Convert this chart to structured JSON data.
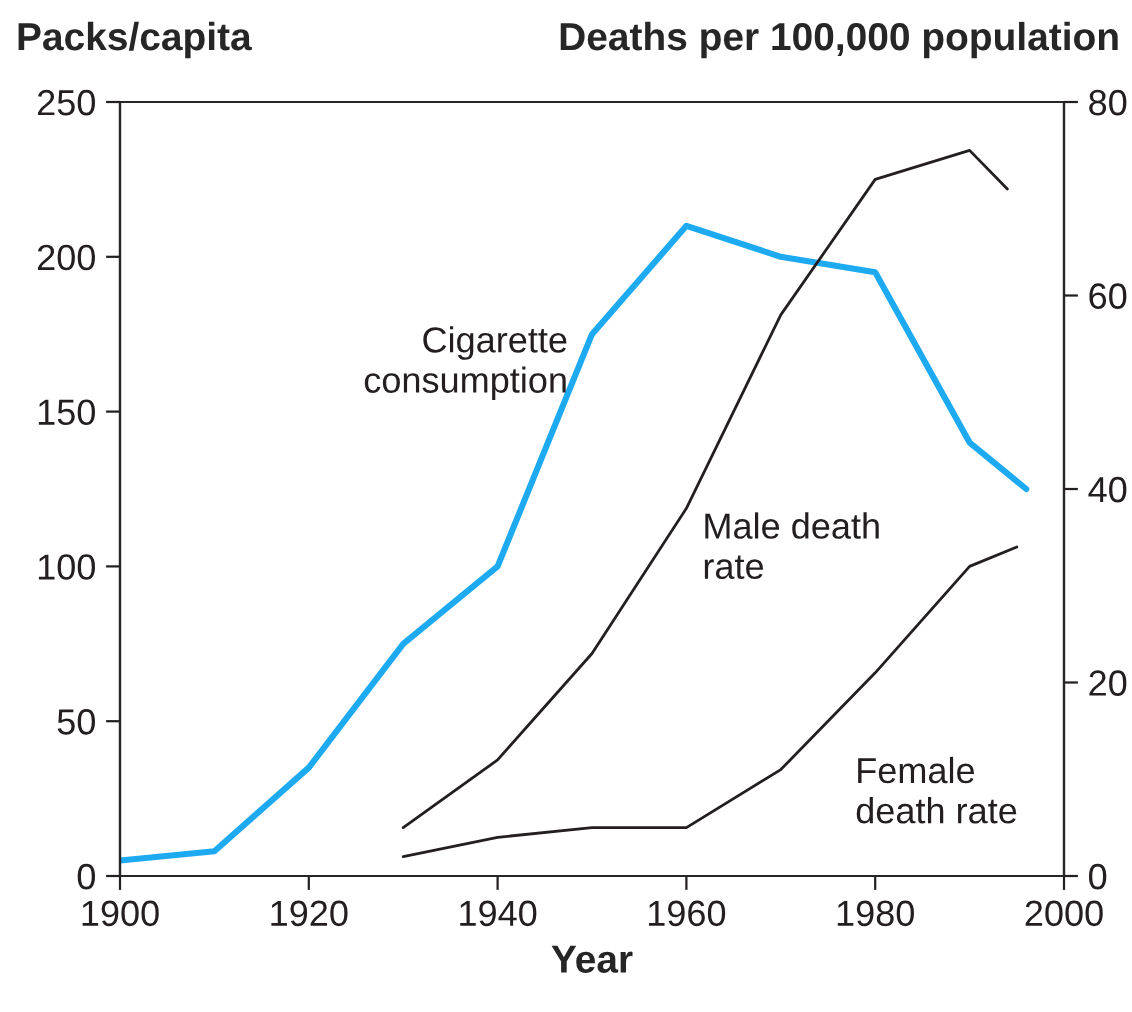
{
  "chart_data": {
    "type": "line",
    "xlabel": "Year",
    "ylabel": "Packs/capita",
    "y2label": "Deaths per 100,000 population",
    "xlim": [
      1900,
      2000
    ],
    "xticks": [
      1900,
      1920,
      1940,
      1960,
      1980,
      2000
    ],
    "ylim": [
      0,
      250
    ],
    "yticks": [
      0,
      50,
      100,
      150,
      200,
      250
    ],
    "y2lim": [
      0,
      80
    ],
    "y2ticks": [
      0,
      20,
      40,
      60,
      80
    ],
    "grid": false,
    "legend": false,
    "marker": "none",
    "line_style": "solid",
    "series": [
      {
        "name": "Cigarette consumption",
        "color": "#1eaaf1",
        "x": [
          1900,
          1910,
          1920,
          1930,
          1940,
          1950,
          1960,
          1970,
          1980,
          1990,
          1996
        ],
        "values": [
          5,
          8,
          35,
          75,
          100,
          175,
          210,
          200,
          195,
          140,
          125
        ]
      },
      {
        "name": "Male death rate",
        "color": "#231f20",
        "axis": "y2",
        "x": [
          1930,
          1940,
          1950,
          1960,
          1970,
          1980,
          1990,
          1994
        ],
        "values": [
          5,
          12,
          23,
          38,
          58,
          72,
          75,
          71
        ]
      },
      {
        "name": "Female death rate",
        "color": "#231f20",
        "axis": "y2",
        "x": [
          1930,
          1940,
          1950,
          1960,
          1970,
          1980,
          1990,
          1995
        ],
        "values": [
          2,
          4,
          5,
          5,
          11,
          21,
          32,
          34
        ]
      }
    ]
  }
}
